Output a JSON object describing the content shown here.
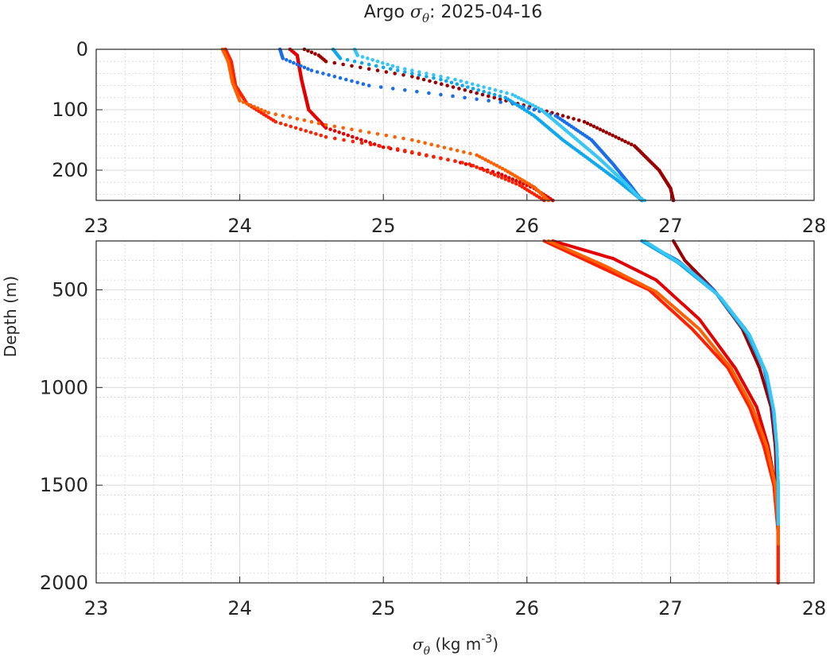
{
  "chart_data": {
    "type": "scatter",
    "title_prefix": "Argo ",
    "title_symbol": "σ",
    "title_subscript": "θ",
    "title_suffix": ": 2025-04-16",
    "xlabel_symbol": "σ",
    "xlabel_subscript": "θ",
    "xlabel_unit": " (kg m",
    "xlabel_exponent": "-3",
    "xlabel_close": ")",
    "ylabel": "Depth (m)",
    "xlim": [
      23,
      28
    ],
    "x_ticks": [
      "23",
      "24",
      "25",
      "26",
      "27",
      "28"
    ],
    "top_panel": {
      "ylim": [
        0,
        250
      ],
      "y_ticks": [
        "0",
        "100",
        "200"
      ]
    },
    "bottom_panel": {
      "ylim": [
        250,
        2000
      ],
      "y_ticks": [
        "500",
        "1000",
        "1500",
        "2000"
      ]
    },
    "series": [
      {
        "name": "profile-dark-red",
        "color": "#9b0000",
        "points": [
          [
            24.45,
            0
          ],
          [
            24.55,
            10
          ],
          [
            24.6,
            20
          ],
          [
            25.2,
            45
          ],
          [
            26.1,
            100
          ],
          [
            26.4,
            120
          ],
          [
            26.75,
            160
          ],
          [
            26.92,
            200
          ],
          [
            27.0,
            230
          ],
          [
            27.02,
            250
          ],
          [
            27.1,
            350
          ],
          [
            27.3,
            500
          ],
          [
            27.5,
            700
          ],
          [
            27.62,
            900
          ],
          [
            27.7,
            1100
          ],
          [
            27.73,
            1300
          ],
          [
            27.74,
            1500
          ],
          [
            27.75,
            1700
          ],
          [
            27.75,
            1800
          ]
        ]
      },
      {
        "name": "profile-red",
        "color": "#e50000",
        "points": [
          [
            24.35,
            0
          ],
          [
            24.4,
            10
          ],
          [
            24.43,
            50
          ],
          [
            24.48,
            100
          ],
          [
            24.6,
            130
          ],
          [
            25.0,
            162
          ],
          [
            25.5,
            185
          ],
          [
            25.8,
            205
          ],
          [
            26.05,
            230
          ],
          [
            26.18,
            250
          ],
          [
            26.6,
            340
          ],
          [
            26.9,
            450
          ],
          [
            27.2,
            650
          ],
          [
            27.45,
            900
          ],
          [
            27.6,
            1100
          ],
          [
            27.68,
            1300
          ],
          [
            27.73,
            1500
          ],
          [
            27.75,
            1700
          ],
          [
            27.75,
            2000
          ]
        ]
      },
      {
        "name": "profile-orange-red",
        "color": "#ff2000",
        "points": [
          [
            23.9,
            0
          ],
          [
            23.94,
            20
          ],
          [
            23.97,
            60
          ],
          [
            24.05,
            90
          ],
          [
            24.25,
            120
          ],
          [
            24.6,
            145
          ],
          [
            25.1,
            165
          ],
          [
            25.6,
            190
          ],
          [
            25.95,
            225
          ],
          [
            26.12,
            250
          ],
          [
            26.5,
            380
          ],
          [
            26.85,
            500
          ],
          [
            27.15,
            700
          ],
          [
            27.4,
            900
          ],
          [
            27.55,
            1100
          ],
          [
            27.65,
            1300
          ],
          [
            27.72,
            1500
          ],
          [
            27.75,
            1750
          ],
          [
            27.75,
            2000
          ]
        ]
      },
      {
        "name": "profile-orange",
        "color": "#ff6000",
        "points": [
          [
            23.88,
            0
          ],
          [
            23.92,
            20
          ],
          [
            23.95,
            55
          ],
          [
            24.0,
            85
          ],
          [
            24.2,
            105
          ],
          [
            24.6,
            125
          ],
          [
            25.2,
            150
          ],
          [
            25.65,
            175
          ],
          [
            25.85,
            200
          ],
          [
            26.05,
            228
          ],
          [
            26.15,
            250
          ],
          [
            26.55,
            380
          ],
          [
            26.9,
            510
          ],
          [
            27.2,
            700
          ],
          [
            27.42,
            900
          ],
          [
            27.57,
            1100
          ],
          [
            27.67,
            1300
          ],
          [
            27.73,
            1500
          ],
          [
            27.75,
            1700
          ],
          [
            27.75,
            1800
          ]
        ]
      },
      {
        "name": "profile-blue",
        "color": "#1a6fe8",
        "points": [
          [
            24.28,
            0
          ],
          [
            24.3,
            15
          ],
          [
            24.5,
            35
          ],
          [
            24.9,
            60
          ],
          [
            25.4,
            75
          ],
          [
            25.9,
            90
          ],
          [
            26.2,
            110
          ],
          [
            26.45,
            150
          ],
          [
            26.6,
            190
          ],
          [
            26.72,
            225
          ],
          [
            26.8,
            250
          ],
          [
            27.05,
            350
          ],
          [
            27.3,
            500
          ],
          [
            27.52,
            700
          ],
          [
            27.65,
            900
          ],
          [
            27.71,
            1100
          ],
          [
            27.74,
            1300
          ],
          [
            27.75,
            1500
          ],
          [
            27.75,
            1700
          ]
        ]
      },
      {
        "name": "profile-light-blue",
        "color": "#10a8ec",
        "points": [
          [
            24.65,
            0
          ],
          [
            24.7,
            15
          ],
          [
            25.0,
            30
          ],
          [
            25.4,
            50
          ],
          [
            25.85,
            80
          ],
          [
            26.05,
            110
          ],
          [
            26.25,
            150
          ],
          [
            26.45,
            185
          ],
          [
            26.62,
            215
          ],
          [
            26.75,
            240
          ],
          [
            26.8,
            250
          ],
          [
            27.05,
            360
          ],
          [
            27.32,
            520
          ],
          [
            27.53,
            720
          ],
          [
            27.66,
            920
          ],
          [
            27.72,
            1120
          ],
          [
            27.74,
            1300
          ],
          [
            27.75,
            1500
          ],
          [
            27.75,
            1700
          ]
        ]
      },
      {
        "name": "profile-sky-blue",
        "color": "#38c6f4",
        "points": [
          [
            24.8,
            0
          ],
          [
            24.82,
            10
          ],
          [
            25.1,
            30
          ],
          [
            25.5,
            50
          ],
          [
            25.9,
            75
          ],
          [
            26.1,
            100
          ],
          [
            26.3,
            140
          ],
          [
            26.5,
            180
          ],
          [
            26.68,
            220
          ],
          [
            26.78,
            245
          ],
          [
            26.82,
            250
          ],
          [
            27.1,
            380
          ],
          [
            27.35,
            540
          ],
          [
            27.55,
            730
          ],
          [
            27.67,
            930
          ],
          [
            27.72,
            1120
          ],
          [
            27.74,
            1300
          ],
          [
            27.75,
            1500
          ],
          [
            27.75,
            1700
          ]
        ]
      }
    ]
  }
}
